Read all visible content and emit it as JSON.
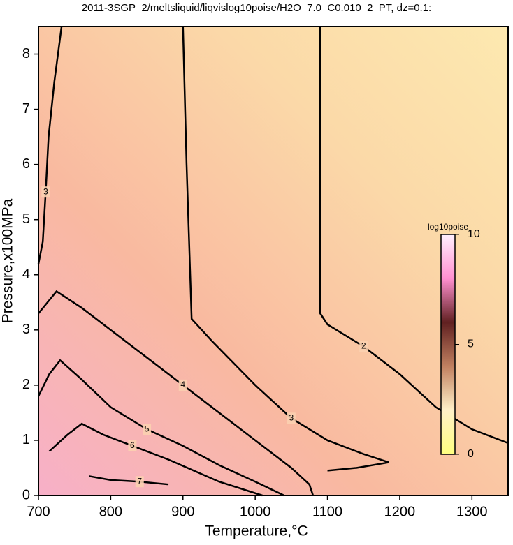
{
  "chart_data": {
    "type": "contour",
    "title": "2011-3SGP_2/meltsliquid/liqvislog10poise/H2O_7.0_C0.010_2_PT, dz=0.1:",
    "xlabel": "Temperature,°C",
    "ylabel": "Pressure,x100MPa",
    "xlim": [
      700,
      1350
    ],
    "ylim": [
      0,
      8.5
    ],
    "xticks": [
      700,
      800,
      900,
      1000,
      1100,
      1200,
      1300
    ],
    "yticks": [
      0,
      1,
      2,
      3,
      4,
      5,
      6,
      7,
      8
    ],
    "line_color": "#000000",
    "series": [
      {
        "level": 3,
        "x": [
          732,
          722,
          714,
          710,
          706,
          700
        ],
        "y": [
          8.5,
          7.5,
          6.5,
          5.5,
          4.6,
          4.2
        ]
      },
      {
        "level": 3,
        "x": [
          900,
          905,
          910,
          912,
          940,
          1000,
          1050,
          1100,
          1150,
          1185,
          1140,
          1100
        ],
        "y": [
          8.5,
          6,
          4,
          3.2,
          2.8,
          2.0,
          1.4,
          1.0,
          0.75,
          0.6,
          0.5,
          0.45
        ]
      },
      {
        "level": 2,
        "x": [
          1090,
          1090,
          1090,
          1100,
          1150,
          1200,
          1250,
          1300,
          1350
        ],
        "y": [
          8.5,
          5.3,
          3.3,
          3.1,
          2.7,
          2.2,
          1.6,
          1.2,
          0.95
        ]
      },
      {
        "level": 4,
        "x": [
          700,
          725,
          760,
          800,
          850,
          900,
          950,
          1000,
          1050,
          1075,
          1080
        ],
        "y": [
          3.3,
          3.7,
          3.4,
          3.0,
          2.5,
          2.0,
          1.5,
          1.0,
          0.5,
          0.2,
          0
        ]
      },
      {
        "level": 5,
        "x": [
          700,
          715,
          730,
          760,
          800,
          850,
          900,
          950,
          1000,
          1040
        ],
        "y": [
          1.8,
          2.2,
          2.45,
          2.1,
          1.6,
          1.2,
          0.9,
          0.55,
          0.25,
          0
        ]
      },
      {
        "level": 6,
        "x": [
          715,
          740,
          760,
          790,
          830,
          880,
          950,
          1010
        ],
        "y": [
          0.8,
          1.1,
          1.3,
          1.1,
          0.9,
          0.65,
          0.25,
          0
        ]
      },
      {
        "level": 7,
        "x": [
          770,
          800,
          840,
          880
        ],
        "y": [
          0.35,
          0.28,
          0.25,
          0.2
        ]
      }
    ],
    "colorbar": {
      "label": "log10poise",
      "lim": [
        0,
        10
      ],
      "ticks": [
        0,
        5,
        10
      ],
      "colors": [
        "#ffff80",
        "#fff0c8",
        "#c08060",
        "#602020",
        "#ff90d0",
        "#fff0ff"
      ]
    }
  }
}
